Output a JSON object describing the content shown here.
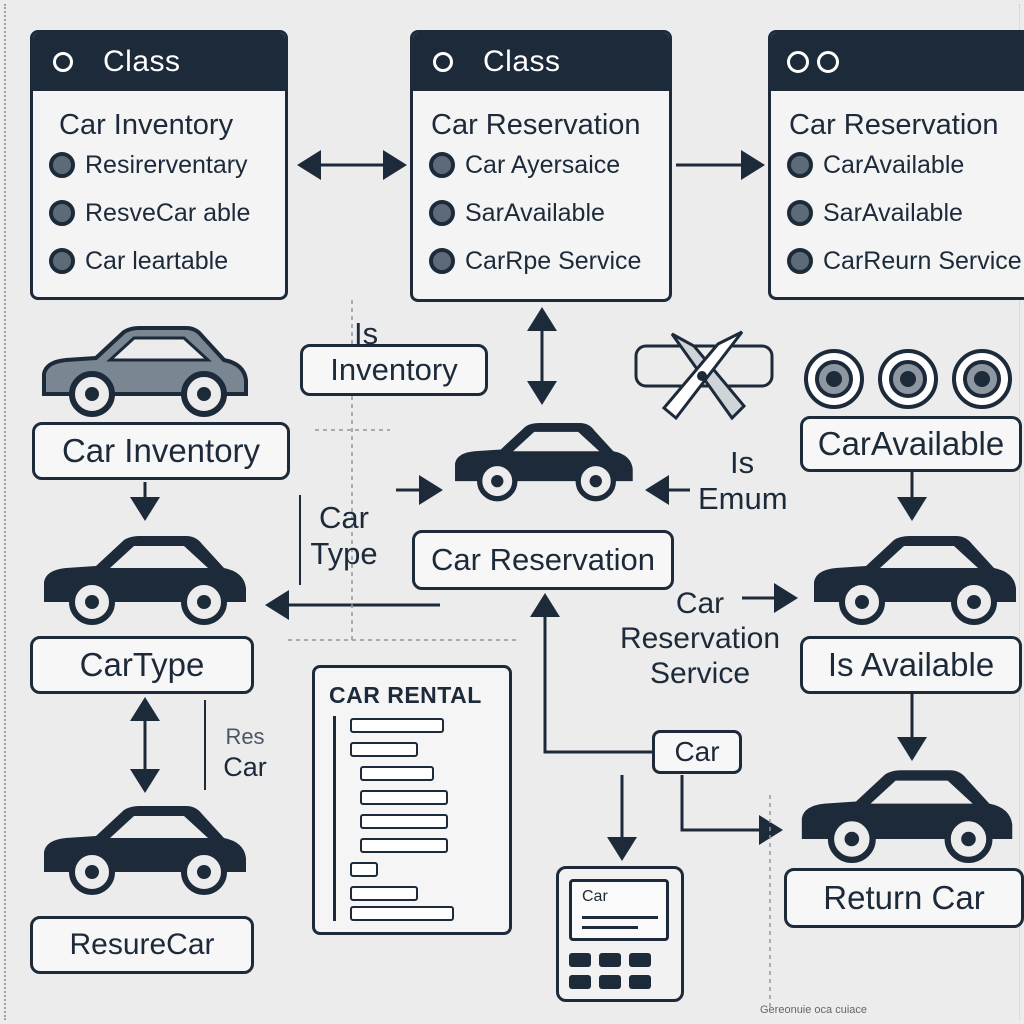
{
  "class_boxes": {
    "left": {
      "header": "Class",
      "title": "Car Inventory",
      "members": [
        "Resirerventary",
        "ResveCar able",
        "Car leartable"
      ]
    },
    "middle": {
      "header": "Class",
      "title": "Car Reservation",
      "members": [
        "Car Ayersaice",
        "SarAvailable",
        "CarRpe Service"
      ]
    },
    "right": {
      "title": "Car Reservation",
      "members": [
        "CarAvailable",
        "SarAvailable",
        "CarReurn Service"
      ]
    }
  },
  "labels": {
    "is": "Is",
    "inventory": "Inventory",
    "car_inventory": "Car Inventory",
    "car_type_text": [
      "Car",
      "Type"
    ],
    "car_reservation": "Car Reservation",
    "is_enum": [
      "Is",
      "Emum"
    ],
    "car_available": "CarAvailable",
    "car_type_box": "CarType",
    "res_car": [
      "Res",
      "Car"
    ],
    "car_reservation_service": [
      "Car",
      "Reservation",
      "Service"
    ],
    "is_available": "Is Available",
    "car_small": "Car",
    "return_car": "Return Car",
    "resure_car": "ResureCar",
    "car_rental_title": "CAR RENTAL",
    "device_text": "Car",
    "footer": "Gereonuie oca cuiace"
  },
  "icons": {
    "car": "car-icon",
    "scissors": "scissors-icon",
    "coin": "coin-icon"
  },
  "colors": {
    "ink": "#1d2a3a",
    "background": "#ececec",
    "paper": "#f4f4f4"
  }
}
